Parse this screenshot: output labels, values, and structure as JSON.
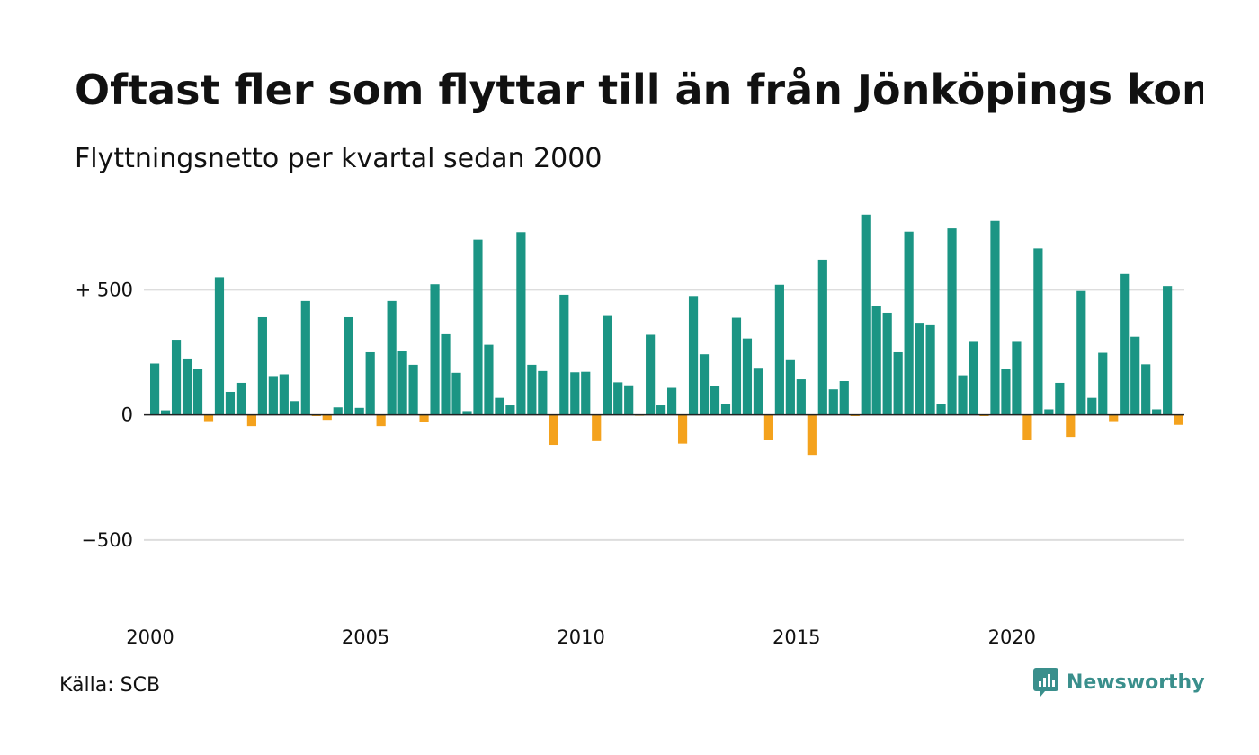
{
  "title": "Oftast fler som flyttar till än från Jönköpings kommun",
  "subtitle": "Flyttningsnetto per kvartal sedan 2000",
  "source": "Källa: SCB",
  "brand": {
    "name": "Newsworthy",
    "icon": "newsworthy-logo-icon",
    "color": "#3a8f8c"
  },
  "colors": {
    "positive": "#1b9584",
    "negative": "#f4a21d",
    "grid": "#dddddd",
    "zero_line": "#222222"
  },
  "chart_data": {
    "type": "bar",
    "title": "Oftast fler som flyttar till än från Jönköpings kommun",
    "subtitle": "Flyttningsnetto per kvartal sedan 2000",
    "xlabel": "",
    "ylabel": "",
    "ylim": [
      -820,
      810
    ],
    "grid": true,
    "legend": "none",
    "y_ticks": [
      {
        "value": 500,
        "label": "+ 500"
      },
      {
        "value": 0,
        "label": "0"
      },
      {
        "value": -500,
        "label": "−500"
      }
    ],
    "x_ticks": [
      {
        "year": 2000,
        "label": "2000"
      },
      {
        "year": 2005,
        "label": "2005"
      },
      {
        "year": 2010,
        "label": "2010"
      },
      {
        "year": 2015,
        "label": "2015"
      },
      {
        "year": 2020,
        "label": "2020"
      }
    ],
    "start_year": 2000,
    "x_period": "quarter",
    "values": [
      205,
      18,
      300,
      225,
      185,
      -25,
      550,
      92,
      128,
      -45,
      390,
      155,
      162,
      55,
      455,
      -5,
      -20,
      30,
      390,
      28,
      250,
      -45,
      455,
      255,
      200,
      -28,
      522,
      322,
      168,
      15,
      700,
      280,
      68,
      38,
      730,
      200,
      175,
      -120,
      480,
      170,
      172,
      -105,
      395,
      130,
      118,
      -3,
      320,
      38,
      108,
      -115,
      475,
      242,
      115,
      42,
      388,
      305,
      188,
      -100,
      520,
      222,
      142,
      -160,
      620,
      102,
      135,
      -5,
      800,
      435,
      408,
      250,
      732,
      368,
      358,
      42,
      745,
      158,
      295,
      -5,
      775,
      185,
      295,
      -100,
      665,
      22,
      128,
      -88,
      495,
      68,
      248,
      -25,
      563,
      312,
      202,
      22,
      515,
      -40
    ]
  }
}
